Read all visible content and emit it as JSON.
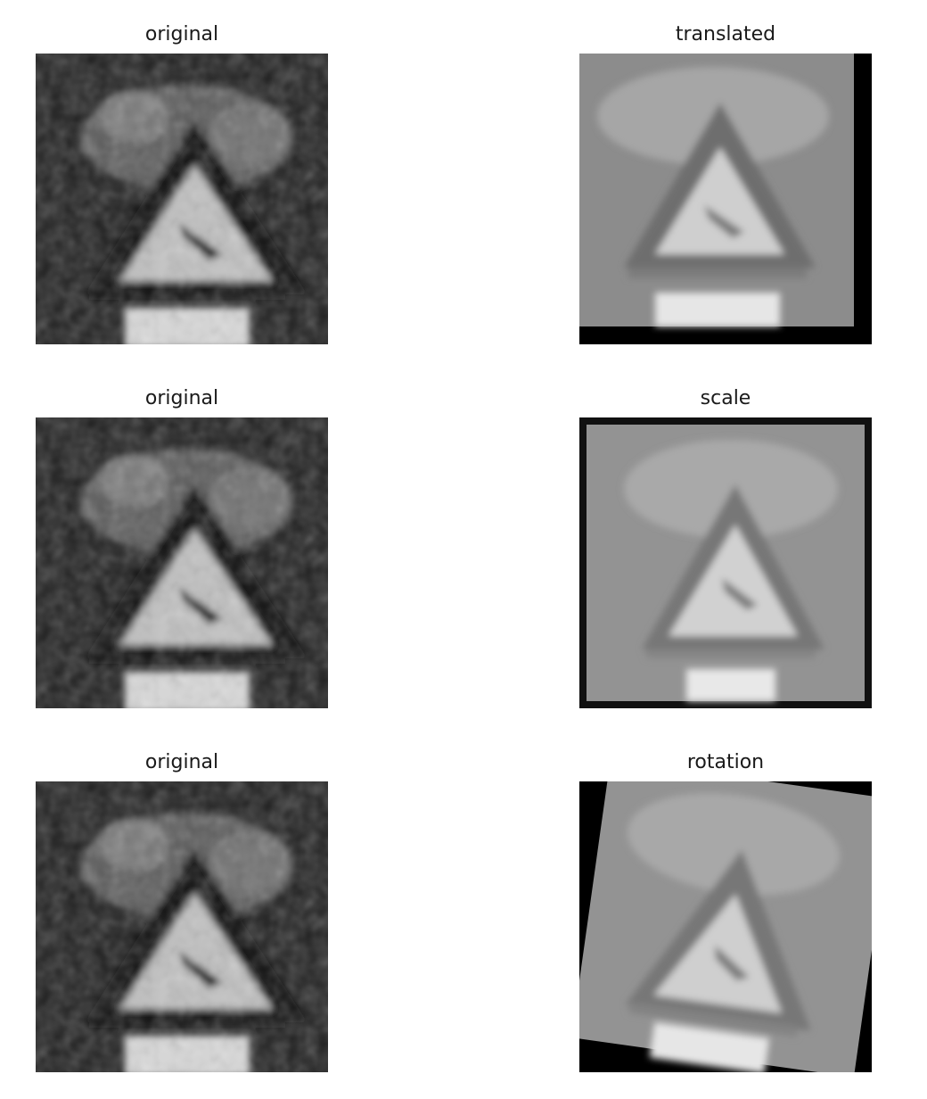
{
  "figure": {
    "rows": [
      {
        "left": {
          "title": "original"
        },
        "right": {
          "title": "translated"
        }
      },
      {
        "left": {
          "title": "original"
        },
        "right": {
          "title": "scale"
        }
      },
      {
        "left": {
          "title": "original"
        },
        "right": {
          "title": "rotation"
        }
      }
    ]
  }
}
